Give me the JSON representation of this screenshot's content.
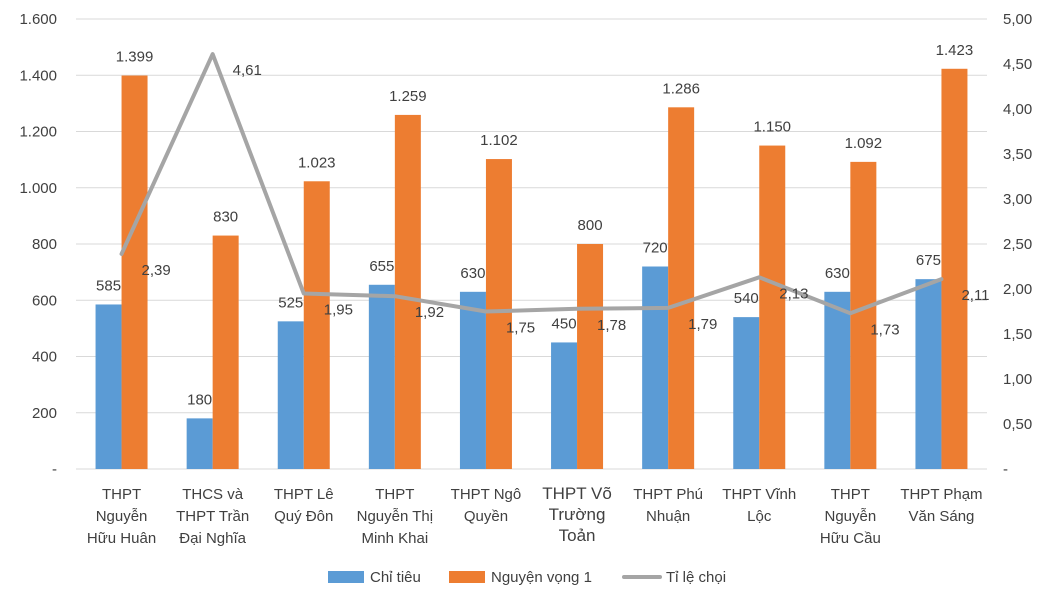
{
  "chart_data": {
    "type": "bar",
    "title": "",
    "categories": [
      [
        "THPT",
        "Nguyễn",
        "Hữu Huân"
      ],
      [
        "THCS và",
        "THPT Trần",
        "Đại Nghĩa"
      ],
      [
        "THPT Lê",
        "Quý Đôn"
      ],
      [
        "THPT",
        "Nguyễn Thị",
        "Minh Khai"
      ],
      [
        "THPT Ngô",
        "Quyền"
      ],
      [
        "THPT Võ",
        "Trường",
        "Toản"
      ],
      [
        "THPT Phú",
        "Nhuận"
      ],
      [
        "THPT Vĩnh",
        "Lộc"
      ],
      [
        "THPT",
        "Nguyễn",
        "Hữu Cầu"
      ],
      [
        "THPT Phạm",
        "Văn Sáng"
      ]
    ],
    "series": [
      {
        "name": "Chỉ tiêu",
        "type": "bar",
        "axis": "left",
        "color": "#5B9BD5",
        "values": [
          585,
          180,
          525,
          655,
          630,
          450,
          720,
          540,
          630,
          675
        ],
        "labels": [
          "585",
          "180",
          "525",
          "655",
          "630",
          "450",
          "720",
          "540",
          "630",
          "675"
        ]
      },
      {
        "name": "Nguyện vọng 1",
        "type": "bar",
        "axis": "left",
        "color": "#ED7D31",
        "values": [
          1399,
          830,
          1023,
          1259,
          1102,
          800,
          1286,
          1150,
          1092,
          1423
        ],
        "labels": [
          "1.399",
          "830",
          "1.023",
          "1.259",
          "1.102",
          "800",
          "1.286",
          "1.150",
          "1.092",
          "1.423"
        ]
      },
      {
        "name": "Tỉ lệ chọi",
        "type": "line",
        "axis": "right",
        "color": "#A5A5A5",
        "values": [
          2.39,
          4.61,
          1.95,
          1.92,
          1.75,
          1.78,
          1.79,
          2.13,
          1.73,
          2.11
        ],
        "labels": [
          "2,39",
          "4,61",
          "1,95",
          "1,92",
          "1,75",
          "1,78",
          "1,79",
          "2,13",
          "1,73",
          "2,11"
        ]
      }
    ],
    "y_left": {
      "ylim": [
        0,
        1600
      ],
      "ticks": [
        0,
        200,
        400,
        600,
        800,
        1000,
        1200,
        1400,
        1600
      ],
      "tick_labels": [
        "-",
        "200",
        "400",
        "600",
        "800",
        "1.000",
        "1.200",
        "1.400",
        "1.600"
      ]
    },
    "y_right": {
      "ylim": [
        0,
        5
      ],
      "ticks": [
        0,
        0.5,
        1,
        1.5,
        2,
        2.5,
        3,
        3.5,
        4,
        4.5,
        5
      ],
      "tick_labels": [
        "-",
        "0,50",
        "1,00",
        "1,50",
        "2,00",
        "2,50",
        "3,00",
        "3,50",
        "4,00",
        "4,50",
        "5,00"
      ]
    },
    "grid": true,
    "legend": "bottom",
    "xlabel": "",
    "ylabel": ""
  }
}
